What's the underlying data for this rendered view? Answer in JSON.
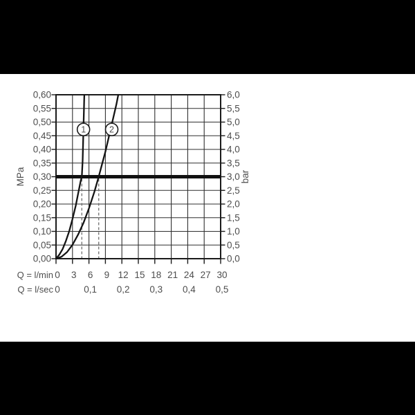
{
  "colors": {
    "background_band": "#000000",
    "panel": "#ffffff",
    "grid": "#2e2e2e",
    "frame": "#1a1a1a",
    "curve": "#141414",
    "reference_line": "#111111",
    "drop_line": "#6e6e6e",
    "text": "#4d4d4d"
  },
  "chart_data": {
    "type": "line",
    "title": "",
    "grid": true,
    "xlim": [
      0,
      30
    ],
    "ylim": [
      0,
      0.6
    ],
    "y_left": {
      "label": "MPa",
      "ticks": [
        "0,60",
        "0,55",
        "0,50",
        "0,45",
        "0,40",
        "0,35",
        "0,30",
        "0,25",
        "0,20",
        "0,15",
        "0,10",
        "0,05",
        "0,00"
      ]
    },
    "y_right": {
      "label": "bar",
      "ticks": [
        "6,0",
        "5,5",
        "5,0",
        "4,5",
        "4,0",
        "3,5",
        "3,0",
        "2,5",
        "2,0",
        "1,5",
        "1,0",
        "0,5",
        "0,0"
      ]
    },
    "x_row1": {
      "label": "Q = l/min",
      "ticks": [
        "0",
        "3",
        "6",
        "9",
        "12",
        "15",
        "18",
        "21",
        "24",
        "27",
        "30"
      ]
    },
    "x_row2": {
      "label": "Q = l/sec",
      "ticks": [
        {
          "t": "0",
          "q": 0
        },
        {
          "t": "0,1",
          "q": 6
        },
        {
          "t": "0,2",
          "q": 12
        },
        {
          "t": "0,3",
          "q": 18
        },
        {
          "t": "0,4",
          "q": 24
        },
        {
          "t": "0,5",
          "q": 30
        }
      ]
    },
    "reference_line": {
      "mpa_label": "0,30",
      "bar_label": "3,0",
      "value": 0.3
    },
    "series": [
      {
        "name": "1",
        "intersect_q_lmin": 4.7,
        "marker": {
          "q": 5.0,
          "p": 0.473
        },
        "points": [
          [
            0,
            0
          ],
          [
            0.6,
            0.015
          ],
          [
            1.2,
            0.035
          ],
          [
            1.8,
            0.065
          ],
          [
            2.4,
            0.1
          ],
          [
            3.0,
            0.145
          ],
          [
            3.6,
            0.195
          ],
          [
            4.1,
            0.245
          ],
          [
            4.5,
            0.285
          ],
          [
            4.7,
            0.3
          ],
          [
            4.85,
            0.36
          ],
          [
            4.95,
            0.44
          ],
          [
            5.05,
            0.52
          ],
          [
            5.15,
            0.6
          ]
        ]
      },
      {
        "name": "2",
        "intersect_q_lmin": 7.78,
        "marker": {
          "q": 10.15,
          "p": 0.473
        },
        "points": [
          [
            0,
            0
          ],
          [
            1,
            0.007
          ],
          [
            2,
            0.024
          ],
          [
            3,
            0.051
          ],
          [
            4,
            0.087
          ],
          [
            5,
            0.131
          ],
          [
            6,
            0.184
          ],
          [
            7,
            0.245
          ],
          [
            7.78,
            0.3
          ],
          [
            9,
            0.392
          ],
          [
            10,
            0.478
          ],
          [
            11,
            0.565
          ],
          [
            11.35,
            0.6
          ]
        ]
      }
    ]
  }
}
